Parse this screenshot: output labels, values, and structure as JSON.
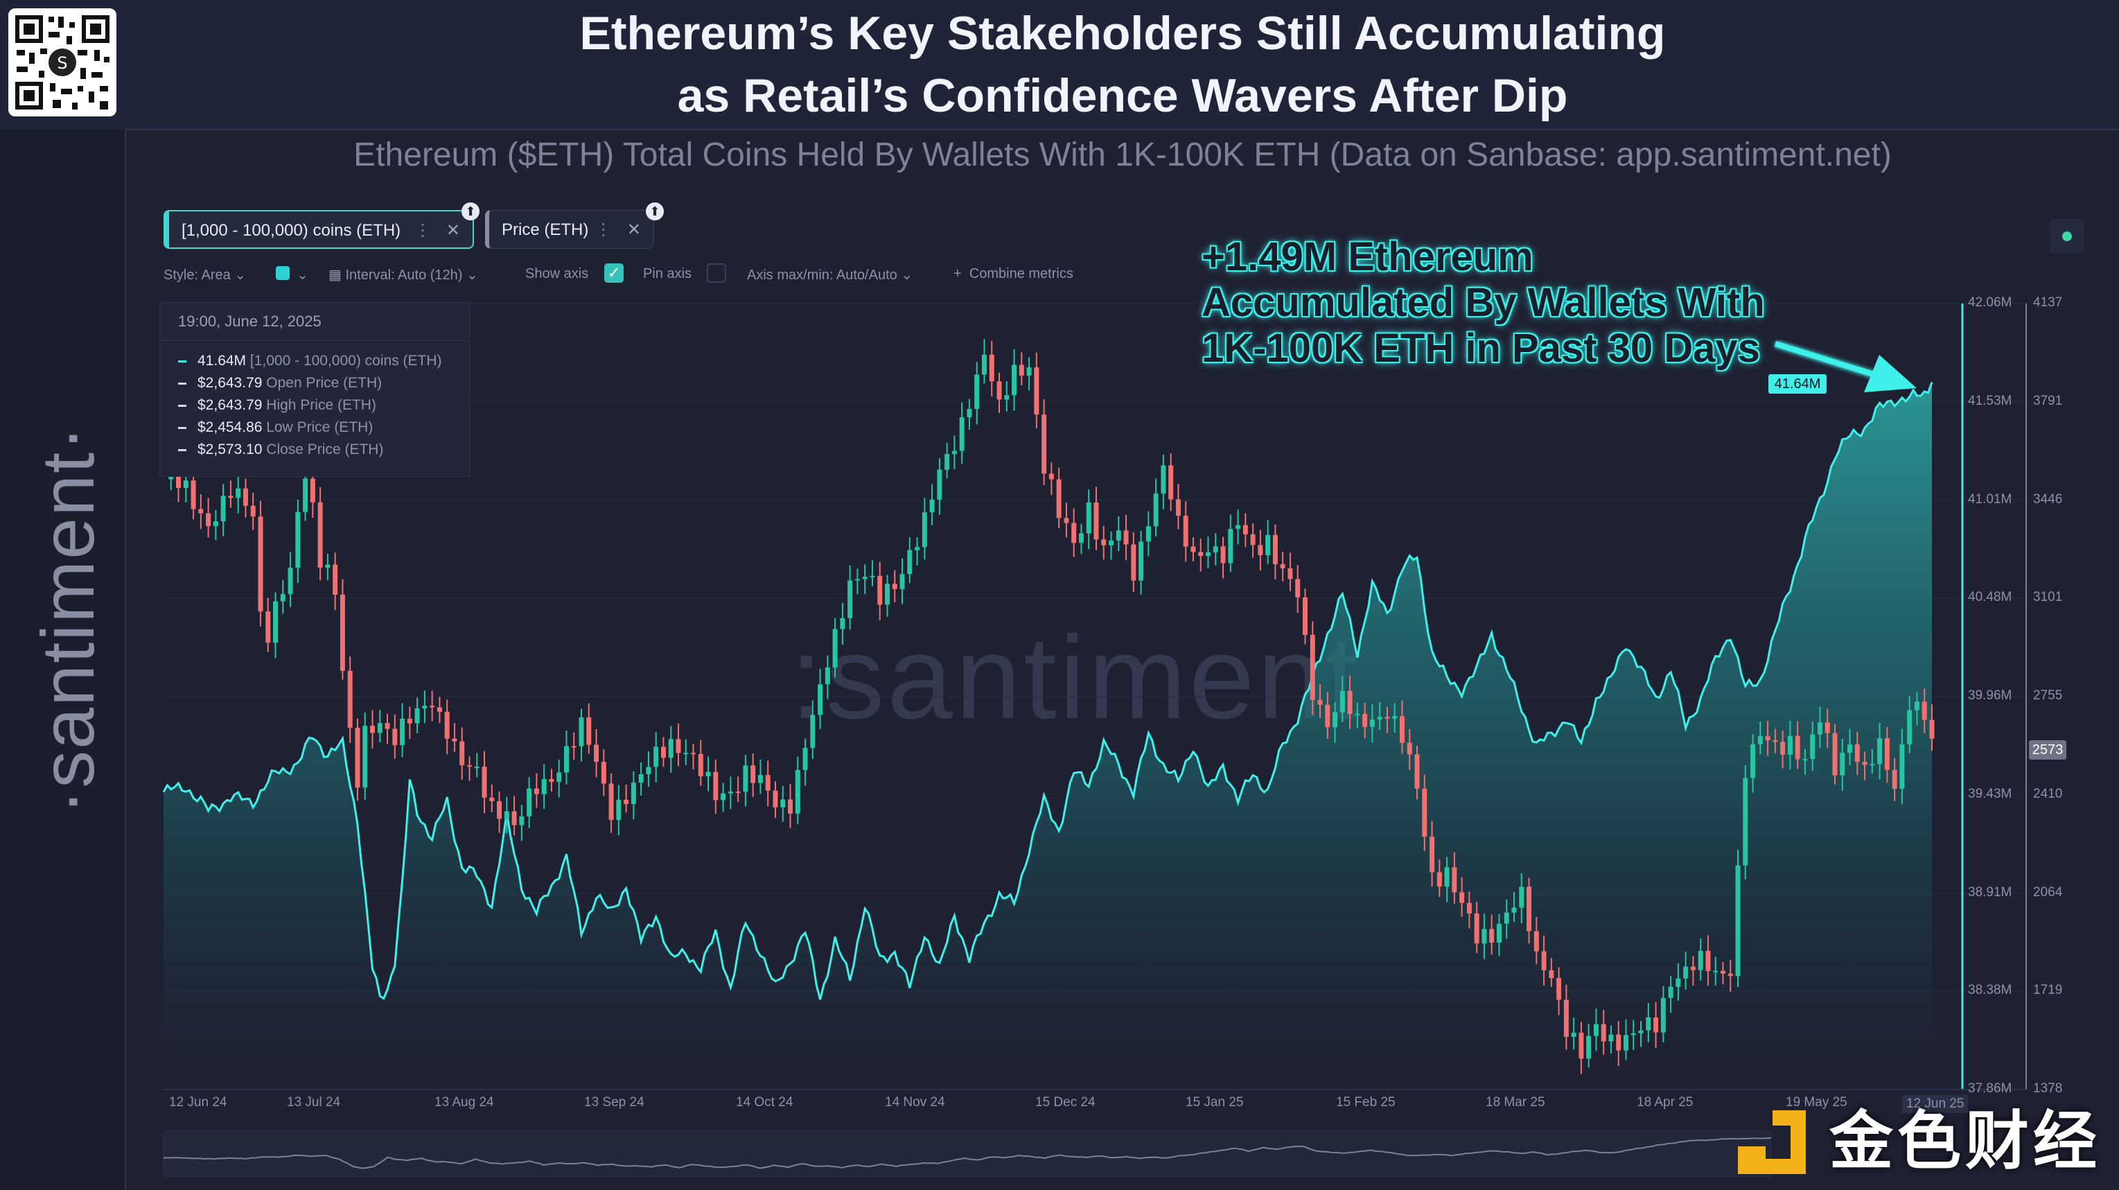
{
  "header": {
    "title_line1": "Ethereum’s Key Stakeholders Still Accumulating",
    "title_line2": "as Retail’s Confidence Wavers After Dip",
    "subtitle": "Ethereum ($ETH) Total Coins Held By Wallets With 1K-100K ETH (Data on Sanbase: app.santiment.net)"
  },
  "brand": {
    "side_logo": "·santiment·",
    "watermark": ":santiment",
    "corner_logo": "金色财经"
  },
  "metrics": [
    {
      "label": "[1,000 - 100,000) coins (ETH)"
    },
    {
      "label": "Price (ETH)"
    }
  ],
  "controls": {
    "style": "Style: Area",
    "interval": "Interval: Auto (12h)",
    "show_axis": "Show axis",
    "pin_axis": "Pin axis",
    "axis_maxmin": "Axis max/min: Auto/Auto",
    "combine": "Combine metrics"
  },
  "tooltip": {
    "date": "19:00, June 12, 2025",
    "rows": [
      {
        "value": "41.64M",
        "label": "[1,000 - 100,000) coins (ETH)"
      },
      {
        "value": "$2,643.79",
        "label": "Open Price (ETH)"
      },
      {
        "value": "$2,643.79",
        "label": "High Price (ETH)"
      },
      {
        "value": "$2,454.86",
        "label": "Low Price (ETH)"
      },
      {
        "value": "$2,573.10",
        "label": "Close Price (ETH)"
      }
    ]
  },
  "annotation": {
    "line1": "+1.49M Ethereum",
    "line2": "Accumulated By Wallets With",
    "line3": "1K-100K ETH in Past 30 Days"
  },
  "colors": {
    "area": "#3ff0ea",
    "up": "#26c6a2",
    "down": "#f0716f",
    "bg": "#1e2132"
  },
  "chart_data": {
    "type": "line",
    "title": "Ethereum ($ETH) Total Coins Held By Wallets With 1K-100K ETH",
    "x_ticks": [
      "12 Jun 24",
      "13 Jul 24",
      "13 Aug 24",
      "13 Sep 24",
      "14 Oct 24",
      "14 Nov 24",
      "15 Dec 24",
      "15 Jan 25",
      "15 Feb 25",
      "18 Mar 25",
      "18 Apr 25",
      "19 May 25",
      "12 Jun 25"
    ],
    "y_left_ticks": [
      "42.06M",
      "41.53M",
      "41.01M",
      "40.48M",
      "39.96M",
      "39.43M",
      "38.91M",
      "38.38M",
      "37.86M"
    ],
    "y_left_range": [
      37.86,
      42.06
    ],
    "y_right_ticks": [
      "4137",
      "3791",
      "3446",
      "3101",
      "2755",
      "2410",
      "2064",
      "1719",
      "1378"
    ],
    "y_right_range": [
      1378,
      4137
    ],
    "current_coins_label": "41.64M",
    "current_price_label": "2573",
    "series": [
      {
        "name": "[1,000 - 100,000) coins (ETH)",
        "style": "area",
        "points": [
          [
            0,
            39.45
          ],
          [
            3,
            39.48
          ],
          [
            6,
            39.35
          ],
          [
            9,
            39.42
          ],
          [
            12,
            39.4
          ],
          [
            15,
            39.55
          ],
          [
            18,
            39.6
          ],
          [
            20,
            39.75
          ],
          [
            22,
            39.65
          ],
          [
            24,
            39.7
          ],
          [
            26,
            39.3
          ],
          [
            27,
            38.9
          ],
          [
            28,
            38.5
          ],
          [
            29,
            38.35
          ],
          [
            30,
            38.4
          ],
          [
            31,
            38.55
          ],
          [
            32,
            38.95
          ],
          [
            33,
            39.5
          ],
          [
            34,
            39.35
          ],
          [
            36,
            39.2
          ],
          [
            38,
            39.4
          ],
          [
            40,
            39.05
          ],
          [
            42,
            39.0
          ],
          [
            44,
            38.85
          ],
          [
            46,
            39.3
          ],
          [
            48,
            38.95
          ],
          [
            50,
            38.8
          ],
          [
            52,
            38.95
          ],
          [
            54,
            39.1
          ],
          [
            56,
            38.7
          ],
          [
            58,
            38.9
          ],
          [
            60,
            38.8
          ],
          [
            62,
            38.95
          ],
          [
            64,
            38.65
          ],
          [
            66,
            38.8
          ],
          [
            68,
            38.55
          ],
          [
            70,
            38.6
          ],
          [
            72,
            38.5
          ],
          [
            74,
            38.7
          ],
          [
            76,
            38.4
          ],
          [
            78,
            38.75
          ],
          [
            80,
            38.6
          ],
          [
            82,
            38.4
          ],
          [
            84,
            38.55
          ],
          [
            86,
            38.7
          ],
          [
            88,
            38.35
          ],
          [
            90,
            38.65
          ],
          [
            92,
            38.45
          ],
          [
            94,
            38.85
          ],
          [
            96,
            38.55
          ],
          [
            98,
            38.6
          ],
          [
            100,
            38.4
          ],
          [
            102,
            38.7
          ],
          [
            104,
            38.5
          ],
          [
            106,
            38.8
          ],
          [
            108,
            38.55
          ],
          [
            110,
            38.75
          ],
          [
            112,
            38.9
          ],
          [
            114,
            38.85
          ],
          [
            116,
            39.15
          ],
          [
            118,
            39.4
          ],
          [
            120,
            39.25
          ],
          [
            122,
            39.55
          ],
          [
            124,
            39.5
          ],
          [
            126,
            39.7
          ],
          [
            128,
            39.6
          ],
          [
            130,
            39.45
          ],
          [
            132,
            39.75
          ],
          [
            134,
            39.6
          ],
          [
            136,
            39.5
          ],
          [
            138,
            39.7
          ],
          [
            140,
            39.45
          ],
          [
            142,
            39.6
          ],
          [
            144,
            39.4
          ],
          [
            146,
            39.55
          ],
          [
            148,
            39.45
          ],
          [
            150,
            39.7
          ],
          [
            152,
            39.85
          ],
          [
            154,
            40.05
          ],
          [
            156,
            40.3
          ],
          [
            158,
            40.5
          ],
          [
            160,
            40.2
          ],
          [
            162,
            40.55
          ],
          [
            164,
            40.4
          ],
          [
            166,
            40.65
          ],
          [
            168,
            40.7
          ],
          [
            170,
            40.2
          ],
          [
            172,
            40.05
          ],
          [
            174,
            40.0
          ],
          [
            176,
            40.1
          ],
          [
            178,
            40.3
          ],
          [
            180,
            40.1
          ],
          [
            182,
            39.9
          ],
          [
            184,
            39.7
          ],
          [
            186,
            39.75
          ],
          [
            188,
            39.85
          ],
          [
            190,
            39.7
          ],
          [
            192,
            39.95
          ],
          [
            194,
            40.05
          ],
          [
            196,
            40.25
          ],
          [
            198,
            40.1
          ],
          [
            200,
            39.95
          ],
          [
            202,
            40.1
          ],
          [
            204,
            39.8
          ],
          [
            206,
            39.95
          ],
          [
            208,
            40.15
          ],
          [
            210,
            40.3
          ],
          [
            212,
            40.0
          ],
          [
            214,
            40.05
          ],
          [
            216,
            40.3
          ],
          [
            218,
            40.55
          ],
          [
            220,
            40.8
          ],
          [
            222,
            41.0
          ],
          [
            224,
            41.25
          ],
          [
            226,
            41.35
          ],
          [
            228,
            41.4
          ],
          [
            230,
            41.5
          ],
          [
            232,
            41.55
          ],
          [
            234,
            41.55
          ],
          [
            236,
            41.58
          ],
          [
            237,
            41.64
          ]
        ]
      },
      {
        "name": "Price (ETH)",
        "style": "candlestick",
        "points": [
          [
            0,
            3520
          ],
          [
            3,
            3470
          ],
          [
            6,
            3380
          ],
          [
            9,
            3460
          ],
          [
            12,
            3400
          ],
          [
            13,
            3060
          ],
          [
            14,
            3000
          ],
          [
            15,
            3080
          ],
          [
            17,
            3180
          ],
          [
            18,
            3370
          ],
          [
            19,
            3530
          ],
          [
            20,
            3420
          ],
          [
            21,
            3260
          ],
          [
            22,
            3230
          ],
          [
            23,
            3130
          ],
          [
            24,
            2850
          ],
          [
            25,
            2600
          ],
          [
            26,
            2440
          ],
          [
            27,
            2620
          ],
          [
            29,
            2690
          ],
          [
            31,
            2620
          ],
          [
            34,
            2680
          ],
          [
            36,
            2750
          ],
          [
            38,
            2660
          ],
          [
            40,
            2510
          ],
          [
            42,
            2470
          ],
          [
            44,
            2380
          ],
          [
            46,
            2370
          ],
          [
            47,
            2300
          ],
          [
            48,
            2340
          ],
          [
            50,
            2420
          ],
          [
            52,
            2480
          ],
          [
            54,
            2580
          ],
          [
            56,
            2640
          ],
          [
            58,
            2510
          ],
          [
            60,
            2370
          ],
          [
            62,
            2420
          ],
          [
            64,
            2460
          ],
          [
            66,
            2540
          ],
          [
            68,
            2610
          ],
          [
            70,
            2580
          ],
          [
            72,
            2480
          ],
          [
            74,
            2400
          ],
          [
            76,
            2440
          ],
          [
            78,
            2500
          ],
          [
            80,
            2440
          ],
          [
            82,
            2370
          ],
          [
            84,
            2400
          ],
          [
            86,
            2600
          ],
          [
            88,
            2760
          ],
          [
            90,
            2960
          ],
          [
            92,
            3180
          ],
          [
            94,
            3200
          ],
          [
            96,
            3080
          ],
          [
            98,
            3140
          ],
          [
            100,
            3280
          ],
          [
            102,
            3380
          ],
          [
            104,
            3520
          ],
          [
            106,
            3640
          ],
          [
            108,
            3820
          ],
          [
            110,
            3960
          ],
          [
            112,
            3750
          ],
          [
            114,
            3900
          ],
          [
            116,
            3940
          ],
          [
            118,
            3560
          ],
          [
            120,
            3380
          ],
          [
            122,
            3300
          ],
          [
            124,
            3440
          ],
          [
            126,
            3260
          ],
          [
            128,
            3320
          ],
          [
            130,
            3200
          ],
          [
            132,
            3400
          ],
          [
            134,
            3550
          ],
          [
            136,
            3340
          ],
          [
            138,
            3260
          ],
          [
            140,
            3300
          ],
          [
            142,
            3240
          ],
          [
            144,
            3350
          ],
          [
            146,
            3290
          ],
          [
            148,
            3320
          ],
          [
            150,
            3180
          ],
          [
            152,
            3100
          ],
          [
            154,
            2790
          ],
          [
            156,
            2680
          ],
          [
            158,
            2740
          ],
          [
            160,
            2650
          ],
          [
            162,
            2690
          ],
          [
            164,
            2720
          ],
          [
            166,
            2600
          ],
          [
            168,
            2420
          ],
          [
            170,
            2140
          ],
          [
            172,
            2150
          ],
          [
            174,
            2010
          ],
          [
            176,
            1900
          ],
          [
            178,
            1940
          ],
          [
            180,
            2010
          ],
          [
            182,
            2040
          ],
          [
            184,
            1830
          ],
          [
            186,
            1800
          ],
          [
            188,
            1600
          ],
          [
            190,
            1480
          ],
          [
            192,
            1590
          ],
          [
            194,
            1570
          ],
          [
            196,
            1560
          ],
          [
            198,
            1570
          ],
          [
            200,
            1600
          ],
          [
            202,
            1780
          ],
          [
            204,
            1800
          ],
          [
            206,
            1810
          ],
          [
            208,
            1780
          ],
          [
            210,
            1820
          ],
          [
            212,
            2500
          ],
          [
            214,
            2600
          ],
          [
            216,
            2580
          ],
          [
            218,
            2620
          ],
          [
            220,
            2530
          ],
          [
            222,
            2660
          ],
          [
            224,
            2510
          ],
          [
            226,
            2620
          ],
          [
            228,
            2490
          ],
          [
            230,
            2560
          ],
          [
            232,
            2440
          ],
          [
            234,
            2760
          ],
          [
            236,
            2690
          ],
          [
            237,
            2573
          ]
        ]
      }
    ]
  }
}
